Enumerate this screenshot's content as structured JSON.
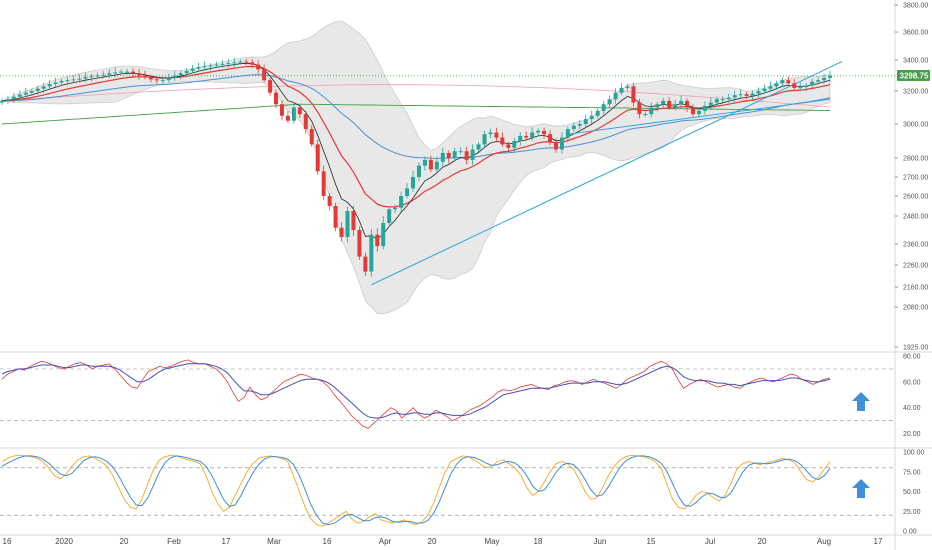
{
  "chart_data": [
    {
      "type": "candlestick",
      "pane": "price",
      "x_ticks": [
        "16",
        "2020",
        "20",
        "Feb",
        "17",
        "Mar",
        "16",
        "Apr",
        "20",
        "May",
        "18",
        "Jun",
        "15",
        "Jul",
        "20",
        "Aug",
        "17"
      ],
      "y_ticks": [
        "3800.00",
        "3600.00",
        "3400.00",
        "3200.00",
        "3000.00",
        "2800.00",
        "2700.00",
        "2600.00",
        "2480.00",
        "2360.00",
        "2260.00",
        "2160.00",
        "2080.00",
        "1925.00"
      ],
      "y_tick_values": [
        3800,
        3600,
        3400,
        3200,
        3000,
        2800,
        2700,
        2600,
        2480,
        2360,
        2260,
        2160,
        2080,
        1925
      ],
      "ylim": [
        1925,
        3800
      ],
      "last_price_label": "3298.75",
      "colors": {
        "up": "#26a69a",
        "down": "#e53935",
        "ema_fast": "#222222",
        "ema_mid": "#e53935",
        "ema_slow": "#4a90d9",
        "sma_long": "#43a047",
        "band": "#c8c8c8",
        "band_fill": "#e6e6e6",
        "trendline": "#29a3e0",
        "pink": "#f0a0b0"
      },
      "closes": [
        3140,
        3150,
        3165,
        3178,
        3190,
        3200,
        3215,
        3230,
        3245,
        3255,
        3265,
        3270,
        3275,
        3280,
        3290,
        3295,
        3300,
        3305,
        3315,
        3320,
        3325,
        3325,
        3315,
        3300,
        3290,
        3275,
        3270,
        3270,
        3285,
        3300,
        3315,
        3330,
        3345,
        3355,
        3360,
        3365,
        3370,
        3375,
        3380,
        3385,
        3390,
        3385,
        3370,
        3340,
        3270,
        3190,
        3120,
        3050,
        3020,
        3100,
        3060,
        2970,
        2880,
        2730,
        2600,
        2540,
        2430,
        2390,
        2510,
        2420,
        2300,
        2230,
        2400,
        2350,
        2450,
        2520,
        2530,
        2600,
        2640,
        2700,
        2760,
        2790,
        2740,
        2780,
        2830,
        2800,
        2840,
        2840,
        2790,
        2850,
        2880,
        2940,
        2950,
        2920,
        2880,
        2860,
        2900,
        2930,
        2920,
        2950,
        2960,
        2940,
        2890,
        2850,
        2920,
        2970,
        2990,
        3000,
        3030,
        3050,
        3080,
        3120,
        3150,
        3190,
        3220,
        3230,
        3130,
        3060,
        3060,
        3100,
        3120,
        3140,
        3100,
        3120,
        3140,
        3100,
        3060,
        3080,
        3110,
        3130,
        3150,
        3150,
        3160,
        3175,
        3180,
        3170,
        3185,
        3200,
        3215,
        3230,
        3250,
        3270,
        3250,
        3220,
        3225,
        3235,
        3260,
        3270,
        3285,
        3298
      ]
    },
    {
      "type": "line",
      "pane": "rsi",
      "y_ticks": [
        "80.00",
        "60.00",
        "40.00",
        "20.00"
      ],
      "y_tick_values": [
        80,
        60,
        40,
        20
      ],
      "ylim": [
        15,
        80
      ],
      "levels": [
        70,
        30
      ],
      "series": [
        {
          "values": [
            62,
            66,
            68,
            70,
            69,
            72,
            74,
            76,
            75,
            73,
            71,
            70,
            72,
            74,
            75,
            73,
            70,
            72,
            73,
            74,
            70,
            65,
            60,
            56,
            55,
            62,
            68,
            70,
            72,
            71,
            72,
            74,
            76,
            77,
            75,
            74,
            74,
            72,
            70,
            66,
            60,
            52,
            45,
            48,
            56,
            50,
            46,
            48,
            52,
            56,
            60,
            62,
            64,
            66,
            65,
            63,
            62,
            60,
            56,
            50,
            45,
            40,
            34,
            30,
            26,
            24,
            28,
            32,
            36,
            40,
            38,
            32,
            36,
            40,
            35,
            32,
            34,
            38,
            36,
            33,
            30,
            32,
            35,
            38,
            40,
            42,
            45,
            48,
            52,
            54,
            53,
            54,
            56,
            57,
            58,
            56,
            55,
            54,
            57,
            58,
            60,
            61,
            60,
            58,
            60,
            62,
            60,
            59,
            57,
            55,
            58,
            62,
            64,
            66,
            68,
            72,
            74,
            76,
            74,
            70,
            62,
            55,
            58,
            60,
            62,
            60,
            58,
            56,
            57,
            58,
            56,
            55,
            58,
            60,
            62,
            63,
            61,
            60,
            62,
            64,
            66,
            65,
            62,
            60,
            58,
            60,
            62,
            63
          ]
        },
        {
          "values": [
            66,
            68,
            69,
            70,
            70,
            71,
            72,
            73,
            73,
            73,
            72,
            71,
            71,
            72,
            73,
            73,
            72,
            72,
            72,
            72,
            71,
            69,
            66,
            63,
            60,
            60,
            62,
            65,
            68,
            70,
            71,
            72,
            73,
            74,
            74,
            74,
            74,
            73,
            72,
            70,
            67,
            62,
            57,
            53,
            53,
            52,
            50,
            50,
            51,
            53,
            55,
            57,
            59,
            61,
            62,
            62,
            62,
            61,
            59,
            56,
            52,
            48,
            44,
            40,
            36,
            33,
            32,
            32,
            33,
            35,
            36,
            35,
            35,
            36,
            36,
            35,
            35,
            36,
            36,
            35,
            34,
            34,
            34,
            35,
            37,
            39,
            41,
            44,
            47,
            50,
            51,
            52,
            53,
            54,
            55,
            55,
            55,
            55,
            56,
            57,
            58,
            59,
            59,
            59,
            59,
            60,
            60,
            60,
            59,
            58,
            58,
            59,
            61,
            63,
            65,
            67,
            69,
            71,
            72,
            71,
            68,
            64,
            62,
            61,
            61,
            61,
            60,
            59,
            59,
            58,
            58,
            57,
            58,
            59,
            60,
            61,
            61,
            61,
            61,
            62,
            63,
            63,
            62,
            61,
            60,
            60,
            61,
            62
          ]
        }
      ],
      "indicator_arrow": "up-arrow-icon"
    },
    {
      "type": "line",
      "pane": "stochastic",
      "y_ticks": [
        "100.00",
        "75.00",
        "50.00",
        "25.00",
        "0.00"
      ],
      "y_tick_values": [
        100,
        75,
        50,
        25,
        0
      ],
      "ylim": [
        0,
        100
      ],
      "levels": [
        80,
        20
      ],
      "series": [
        {
          "values": [
            88,
            92,
            95,
            96,
            95,
            94,
            92,
            88,
            80,
            70,
            66,
            72,
            82,
            90,
            94,
            95,
            92,
            88,
            82,
            70,
            55,
            40,
            30,
            28,
            40,
            60,
            78,
            90,
            94,
            96,
            95,
            92,
            90,
            88,
            85,
            70,
            50,
            35,
            25,
            30,
            45,
            60,
            75,
            85,
            92,
            94,
            95,
            94,
            92,
            88,
            70,
            50,
            30,
            15,
            8,
            6,
            10,
            15,
            20,
            25,
            15,
            10,
            12,
            18,
            22,
            14,
            12,
            10,
            12,
            14,
            10,
            8,
            12,
            20,
            35,
            55,
            75,
            88,
            92,
            95,
            94,
            90,
            85,
            80,
            82,
            88,
            90,
            85,
            80,
            70,
            55,
            45,
            50,
            62,
            75,
            85,
            88,
            85,
            78,
            65,
            50,
            40,
            42,
            55,
            70,
            82,
            90,
            94,
            96,
            95,
            94,
            92,
            88,
            80,
            60,
            40,
            30,
            28,
            35,
            45,
            50,
            48,
            42,
            38,
            45,
            60,
            78,
            85,
            88,
            86,
            84,
            86,
            88,
            90,
            92,
            90,
            86,
            75,
            65,
            62,
            68,
            78,
            88
          ]
        },
        {
          "values": [
            82,
            86,
            90,
            93,
            95,
            95,
            94,
            91,
            86,
            79,
            72,
            70,
            73,
            81,
            89,
            93,
            94,
            92,
            88,
            81,
            70,
            56,
            43,
            33,
            32,
            42,
            58,
            75,
            87,
            93,
            95,
            94,
            92,
            90,
            88,
            82,
            70,
            55,
            40,
            31,
            33,
            45,
            60,
            73,
            84,
            91,
            94,
            94,
            93,
            91,
            84,
            70,
            52,
            33,
            19,
            10,
            8,
            10,
            15,
            20,
            21,
            17,
            13,
            13,
            17,
            18,
            16,
            12,
            11,
            12,
            12,
            10,
            10,
            13,
            22,
            37,
            55,
            73,
            85,
            92,
            94,
            93,
            90,
            86,
            83,
            84,
            87,
            88,
            86,
            80,
            70,
            57,
            50,
            52,
            62,
            74,
            83,
            86,
            84,
            77,
            65,
            52,
            44,
            46,
            56,
            69,
            81,
            89,
            93,
            95,
            95,
            94,
            91,
            86,
            76,
            60,
            44,
            33,
            31,
            36,
            43,
            48,
            47,
            43,
            42,
            48,
            61,
            74,
            83,
            86,
            86,
            85,
            86,
            88,
            90,
            91,
            89,
            84,
            76,
            68,
            65,
            70,
            79
          ]
        }
      ],
      "indicator_arrow": "up-arrow-icon"
    }
  ]
}
